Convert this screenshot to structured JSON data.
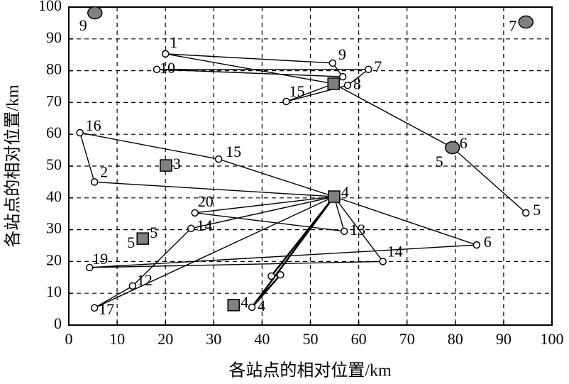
{
  "chart_data": {
    "type": "scatter",
    "xlabel": "各站点的相对位置/km",
    "ylabel": "各站点的相对位置/km",
    "xlim": [
      0,
      100
    ],
    "ylim": [
      0,
      100
    ],
    "xticks": [
      0,
      10,
      20,
      30,
      40,
      50,
      60,
      70,
      80,
      90,
      100
    ],
    "yticks": [
      0,
      10,
      20,
      30,
      40,
      50,
      60,
      70,
      80,
      90,
      100
    ],
    "grid": true,
    "series": [
      {
        "marker": "circle",
        "color": "#ffffff",
        "x": [
          20,
          18.2,
          54.6,
          62,
          56.7,
          57.7,
          45,
          2.3,
          31,
          5.3,
          26.1,
          25.3,
          57,
          84.4,
          65,
          4.3,
          13.2,
          5.3,
          41.9,
          43.8,
          37.9,
          94.6
        ],
        "y": [
          85.3,
          80.4,
          82.4,
          80.4,
          78.1,
          75.4,
          70.3,
          60.5,
          52.2,
          45,
          35.3,
          30.4,
          29.5,
          25.2,
          20,
          18.1,
          12.3,
          5.4,
          15.4,
          15.8,
          5.6,
          35.3
        ],
        "labels": [
          [
            "1"
          ],
          [
            "10"
          ],
          [
            "9"
          ],
          [
            "7"
          ],
          [],
          [
            "8"
          ],
          [
            "15"
          ],
          [
            "16"
          ],
          [
            "15"
          ],
          [
            "2"
          ],
          [
            "20"
          ],
          [
            "14"
          ],
          [
            "13"
          ],
          [
            "6"
          ],
          [
            "14"
          ],
          [
            "19"
          ],
          [
            "12"
          ],
          [
            "17"
          ],
          [],
          [],
          [
            "4"
          ],
          [
            "5"
          ]
        ]
      },
      {
        "marker": "square",
        "color": "#808080",
        "x": [
          54.8,
          20.1,
          54.9,
          15.3,
          34.1
        ],
        "y": [
          75.9,
          50.2,
          40.4,
          27.2,
          6.3
        ],
        "labels": [
          [],
          [
            "3"
          ],
          [
            "4"
          ],
          [
            "5",
            "5"
          ],
          [
            "4"
          ]
        ]
      },
      {
        "marker": "ellipse",
        "color": "#808080",
        "x": [
          5.4,
          94.6,
          79.4
        ],
        "y": [
          98.2,
          95.3,
          55.8
        ],
        "labels": [
          [
            "9"
          ],
          [
            "7"
          ],
          [
            "6",
            "5"
          ]
        ]
      }
    ],
    "routes": [
      [
        [
          1,
          0
        ],
        [
          0,
          0
        ],
        [
          0,
          2
        ],
        [
          0,
          4
        ],
        [
          0,
          1
        ],
        [
          0,
          3
        ],
        [
          0,
          5
        ],
        [
          0,
          6
        ],
        [
          1,
          0
        ]
      ],
      [
        [
          1,
          0
        ],
        [
          2,
          2
        ],
        [
          0,
          21
        ]
      ],
      [
        [
          1,
          2
        ],
        [
          0,
          8
        ],
        [
          0,
          7
        ],
        [
          0,
          9
        ],
        [
          1,
          2
        ]
      ],
      [
        [
          1,
          2
        ],
        [
          0,
          10
        ],
        [
          0,
          12
        ],
        [
          1,
          2
        ]
      ],
      [
        [
          1,
          2
        ],
        [
          0,
          13
        ],
        [
          0,
          15
        ],
        [
          0,
          14
        ],
        [
          1,
          2
        ]
      ],
      [
        [
          1,
          2
        ],
        [
          0,
          11
        ],
        [
          0,
          16
        ],
        [
          0,
          17
        ],
        [
          1,
          2
        ]
      ],
      [
        [
          1,
          2
        ],
        [
          0,
          18
        ],
        [
          0,
          19
        ],
        [
          0,
          20
        ],
        [
          1,
          2
        ]
      ]
    ]
  }
}
